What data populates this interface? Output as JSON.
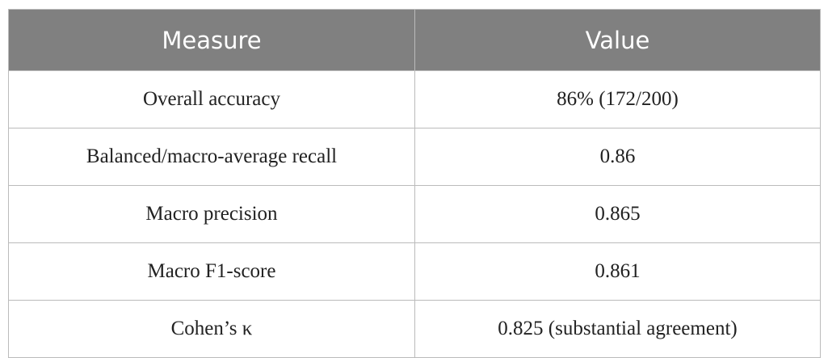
{
  "table": {
    "header": [
      "Measure",
      "Value"
    ],
    "rows": [
      [
        "Overall accuracy",
        "86% (172/200)"
      ],
      [
        "Balanced/macro-average recall",
        "0.86"
      ],
      [
        "Macro precision",
        "0.865"
      ],
      [
        "Macro F1-score",
        "0.861"
      ],
      [
        "Cohen’s κ",
        "0.825 (substantial agreement)"
      ]
    ]
  }
}
